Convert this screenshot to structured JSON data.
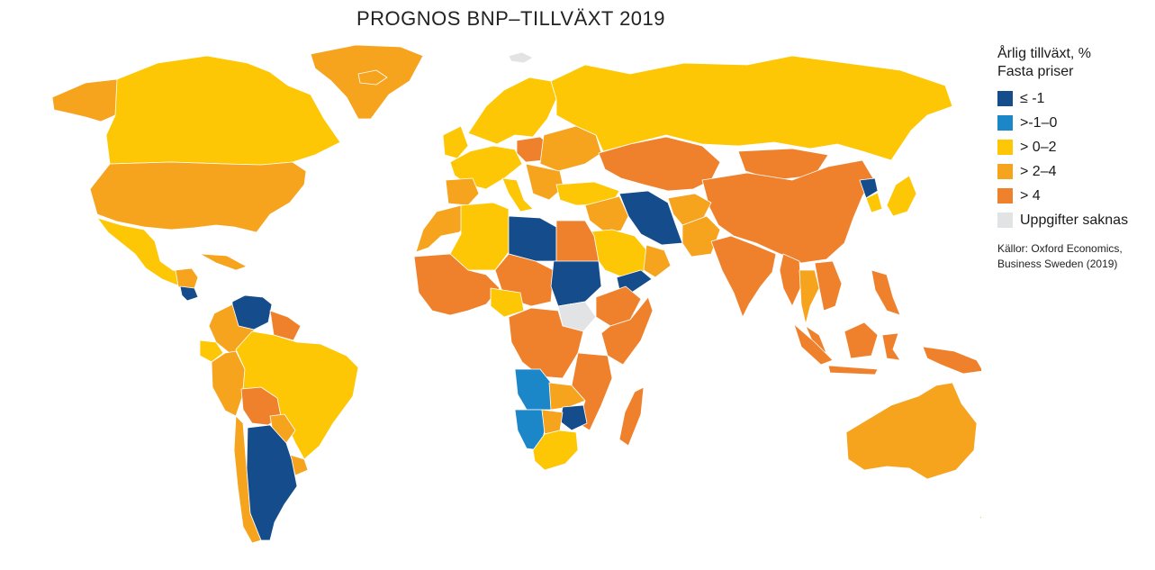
{
  "title": "PROGNOS BNP–TILLVÄXT 2019",
  "legend": {
    "title_line1": "Årlig tillväxt, %",
    "title_line2": "Fasta priser",
    "items": [
      {
        "label": "≤ -1",
        "color": "#154c8c"
      },
      {
        "label": ">-1–0",
        "color": "#1b86c8"
      },
      {
        "label": "> 0–2",
        "color": "#fdc705"
      },
      {
        "label": "> 2–4",
        "color": "#f6a31e"
      },
      {
        "label": "> 4",
        "color": "#f0812c"
      },
      {
        "label": "Uppgifter saknas",
        "color": "#e2e3e5"
      }
    ],
    "source_line1": "Källor: Oxford Economics,",
    "source_line2": "Business Sweden (2019)"
  },
  "map": {
    "regions": [
      {
        "name": "canada",
        "category": 2
      },
      {
        "name": "greenland",
        "category": 3
      },
      {
        "name": "usa",
        "category": 3
      },
      {
        "name": "alaska",
        "category": 3
      },
      {
        "name": "mexico",
        "category": 2
      },
      {
        "name": "central-america",
        "category": 3
      },
      {
        "name": "nicaragua",
        "category": 0
      },
      {
        "name": "cuba",
        "category": 3
      },
      {
        "name": "venezuela",
        "category": 0
      },
      {
        "name": "colombia",
        "category": 3
      },
      {
        "name": "guianas",
        "category": 4
      },
      {
        "name": "ecuador",
        "category": 2
      },
      {
        "name": "peru",
        "category": 3
      },
      {
        "name": "bolivia",
        "category": 4
      },
      {
        "name": "brazil",
        "category": 2
      },
      {
        "name": "paraguay",
        "category": 3
      },
      {
        "name": "uruguay",
        "category": 3
      },
      {
        "name": "chile",
        "category": 3
      },
      {
        "name": "argentina",
        "category": 0
      },
      {
        "name": "iceland",
        "category": 3
      },
      {
        "name": "scandinavia",
        "category": 2
      },
      {
        "name": "uk-ireland",
        "category": 2
      },
      {
        "name": "western-europe",
        "category": 2
      },
      {
        "name": "iberia",
        "category": 3
      },
      {
        "name": "italy",
        "category": 2
      },
      {
        "name": "eastern-europe",
        "category": 3
      },
      {
        "name": "poland",
        "category": 4
      },
      {
        "name": "balkans",
        "category": 3
      },
      {
        "name": "turkey",
        "category": 2
      },
      {
        "name": "russia",
        "category": 2
      },
      {
        "name": "kazakhstan-central-asia",
        "category": 4
      },
      {
        "name": "mongolia",
        "category": 4
      },
      {
        "name": "china",
        "category": 4
      },
      {
        "name": "north-korea",
        "category": 0
      },
      {
        "name": "south-korea",
        "category": 2
      },
      {
        "name": "japan",
        "category": 2
      },
      {
        "name": "iran",
        "category": 0
      },
      {
        "name": "iraq-syria",
        "category": 3
      },
      {
        "name": "saudi-arabia",
        "category": 2
      },
      {
        "name": "oman-uae",
        "category": 3
      },
      {
        "name": "yemen",
        "category": 0
      },
      {
        "name": "afghanistan",
        "category": 3
      },
      {
        "name": "pakistan",
        "category": 3
      },
      {
        "name": "india",
        "category": 4
      },
      {
        "name": "myanmar",
        "category": 4
      },
      {
        "name": "thailand",
        "category": 3
      },
      {
        "name": "indochina",
        "category": 4
      },
      {
        "name": "malaysia",
        "category": 4
      },
      {
        "name": "sumatra",
        "category": 4
      },
      {
        "name": "java",
        "category": 4
      },
      {
        "name": "borneo",
        "category": 4
      },
      {
        "name": "sulawesi",
        "category": 4
      },
      {
        "name": "philippines",
        "category": 4
      },
      {
        "name": "new-guinea",
        "category": 4
      },
      {
        "name": "morocco",
        "category": 3
      },
      {
        "name": "algeria",
        "category": 2
      },
      {
        "name": "libya",
        "category": 0
      },
      {
        "name": "egypt",
        "category": 4
      },
      {
        "name": "west-africa",
        "category": 4
      },
      {
        "name": "niger-chad",
        "category": 4
      },
      {
        "name": "nigeria",
        "category": 2
      },
      {
        "name": "sudan",
        "category": 0
      },
      {
        "name": "south-sudan",
        "category": 5
      },
      {
        "name": "ethiopia",
        "category": 4
      },
      {
        "name": "somalia-kenya",
        "category": 4
      },
      {
        "name": "central-africa",
        "category": 4
      },
      {
        "name": "tanzania-mozambique",
        "category": 4
      },
      {
        "name": "angola",
        "category": 1
      },
      {
        "name": "zambia",
        "category": 3
      },
      {
        "name": "zimbabwe",
        "category": 0
      },
      {
        "name": "namibia",
        "category": 1
      },
      {
        "name": "botswana",
        "category": 3
      },
      {
        "name": "south-africa",
        "category": 2
      },
      {
        "name": "madagascar",
        "category": 4
      },
      {
        "name": "australia",
        "category": 3
      },
      {
        "name": "new-zealand-north",
        "category": 3
      },
      {
        "name": "new-zealand-south",
        "category": 3
      },
      {
        "name": "svalbard",
        "category": 5
      }
    ]
  }
}
